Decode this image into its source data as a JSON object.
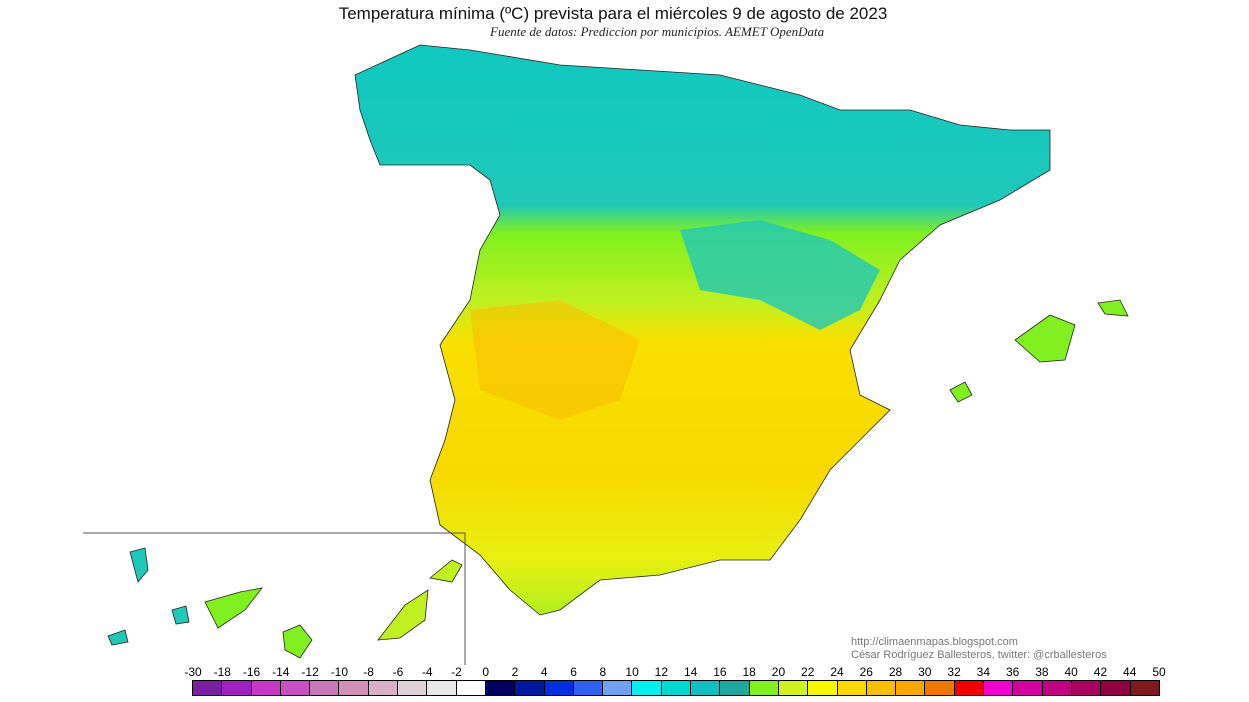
{
  "title": "Temperatura mínima (ºC) prevista para el miércoles 9 de agosto de 2023",
  "subtitle": "Fuente de datos: Prediccion por municipios. AEMET OpenData",
  "credits": [
    "http://climaenmapas.blogspot.com",
    "César Rodríguez Ballesteros, twitter: @crballesteros"
  ],
  "legend": {
    "labels": [
      "-30",
      "-18",
      "-16",
      "-14",
      "-12",
      "-10",
      "-8",
      "-6",
      "-4",
      "-2",
      "0",
      "2",
      "4",
      "6",
      "8",
      "10",
      "12",
      "14",
      "16",
      "18",
      "20",
      "22",
      "24",
      "26",
      "28",
      "30",
      "32",
      "34",
      "36",
      "38",
      "40",
      "42",
      "44",
      "50"
    ],
    "colors": [
      "#7a1fa0",
      "#a020c0",
      "#c838c8",
      "#c850c0",
      "#c878b8",
      "#d090b8",
      "#d8b0c8",
      "#e0d0d8",
      "#e8e8e8",
      "#ffffff",
      "#000060",
      "#0018a0",
      "#0030e0",
      "#3060f0",
      "#70a0f0",
      "#00f0f0",
      "#00d8d0",
      "#10c0c0",
      "#20a8a0",
      "#80f020",
      "#d0f020",
      "#f8f800",
      "#f8d800",
      "#f8c000",
      "#f8a800",
      "#f07800",
      "#f00000",
      "#f000d0",
      "#d000a0",
      "#c00080",
      "#a80060",
      "#900040",
      "#801820"
    ]
  }
}
